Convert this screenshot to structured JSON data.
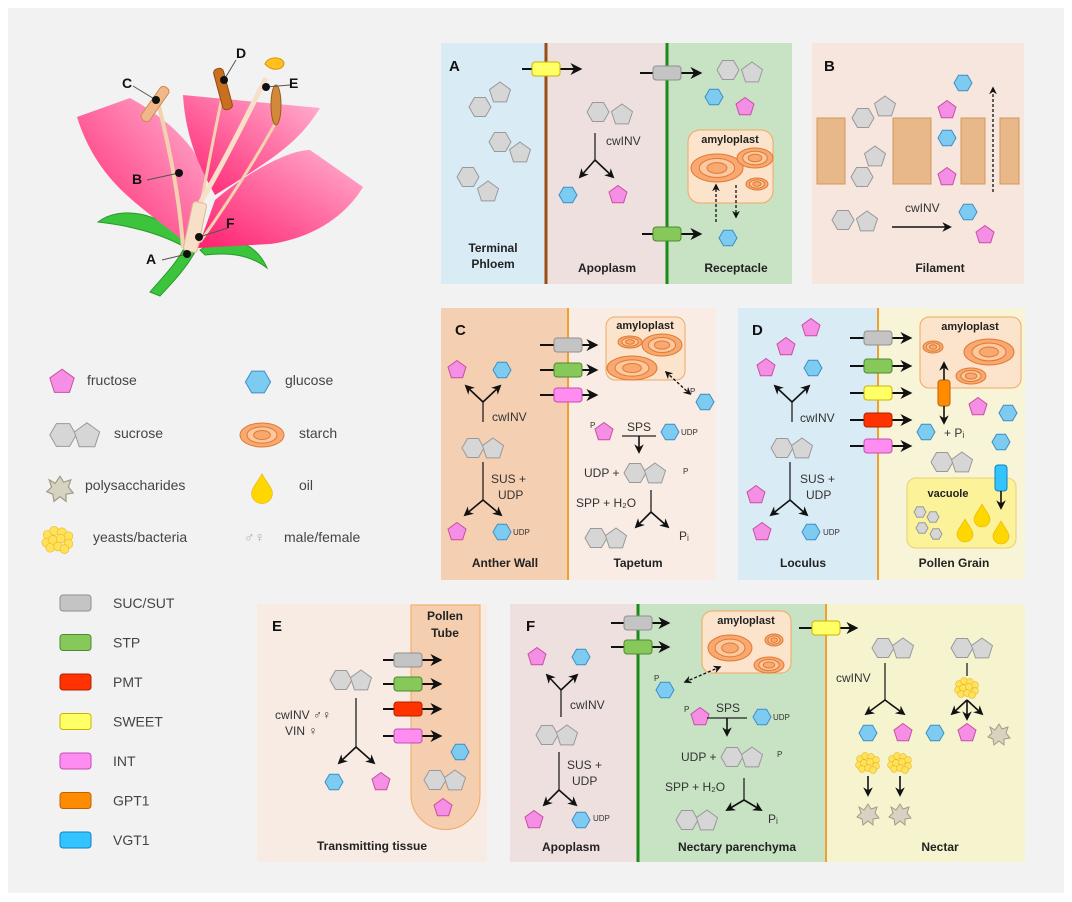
{
  "flower": {
    "labels": {
      "A": "A",
      "B": "B",
      "C": "C",
      "D": "D",
      "E": "E",
      "F": "F"
    }
  },
  "legend": {
    "molecules": [
      {
        "icon": "fructose",
        "label": "fructose"
      },
      {
        "icon": "glucose",
        "label": "glucose"
      },
      {
        "icon": "sucrose",
        "label": "sucrose"
      },
      {
        "icon": "starch",
        "label": "starch"
      },
      {
        "icon": "polysaccharides",
        "label": "polysaccharides"
      },
      {
        "icon": "oil",
        "label": "oil"
      },
      {
        "icon": "yeasts-bacteria",
        "label": "yeasts/bacteria"
      },
      {
        "icon": "male-female",
        "symbol": "♂♀",
        "label": "male/female"
      }
    ],
    "transporters": [
      {
        "key": "SUC",
        "label": "SUC/SUT",
        "color": "#c4c4c4",
        "stroke": "#8f8f8f"
      },
      {
        "key": "STP",
        "label": "STP",
        "color": "#86c95a",
        "stroke": "#4c8a2e"
      },
      {
        "key": "PMT",
        "label": "PMT",
        "color": "#ff3300",
        "stroke": "#b02000"
      },
      {
        "key": "SWEET",
        "label": "SWEET",
        "color": "#ffff66",
        "stroke": "#c8b400"
      },
      {
        "key": "INT",
        "label": "INT",
        "color": "#ff8cf0",
        "stroke": "#c050b0"
      },
      {
        "key": "GPT1",
        "label": "GPT1",
        "color": "#ff8c00",
        "stroke": "#c06000"
      },
      {
        "key": "VGT1",
        "label": "VGT1",
        "color": "#33c4ff",
        "stroke": "#1080c0"
      }
    ]
  },
  "panel_a": {
    "letter": "A",
    "phloem_1": "Terminal",
    "phloem_2": "Phloem",
    "apoplasm": "Apoplasm",
    "receptacle": "Receptacle",
    "enzyme": "cwINV",
    "amyloplast": "amyloplast"
  },
  "panel_b": {
    "letter": "B",
    "enzyme": "cwINV",
    "region": "Filament"
  },
  "panel_c": {
    "letter": "C",
    "enzyme": "cwINV",
    "sus": "SUS +",
    "udp": "UDP",
    "udp_small": "UDP",
    "amyloplast": "amyloplast",
    "p": "P",
    "sps": "SPS",
    "udp_plus": "UDP +",
    "spp": "SPP + H₂O",
    "pi": "Pᵢ",
    "anther_wall": "Anther Wall",
    "tapetum": "Tapetum"
  },
  "panel_d": {
    "letter": "D",
    "enzyme": "cwINV",
    "sus": "SUS +",
    "udp": "UDP",
    "udp_small": "UDP",
    "amyloplast": "amyloplast",
    "plus_pi": "+ Pᵢ",
    "vacuole": "vacuole",
    "loculus": "Loculus",
    "pollen_grain": "Pollen Grain"
  },
  "panel_e": {
    "letter": "E",
    "tube_1": "Pollen",
    "tube_2": "Tube",
    "enzyme_1": "cwINV ♂♀",
    "enzyme_2": "VIN ♀",
    "region": "Transmitting tissue"
  },
  "panel_f": {
    "letter": "F",
    "enzyme": "cwINV",
    "sus": "SUS +",
    "udp": "UDP",
    "udp_small": "UDP",
    "amyloplast": "amyloplast",
    "p": "P",
    "sps": "SPS",
    "udp_plus": "UDP +",
    "spp": "SPP + H₂O",
    "pi": "Pᵢ",
    "apoplasm": "Apoplasm",
    "parenchyma": "Nectary parenchyma",
    "nectar": "Nectar"
  }
}
